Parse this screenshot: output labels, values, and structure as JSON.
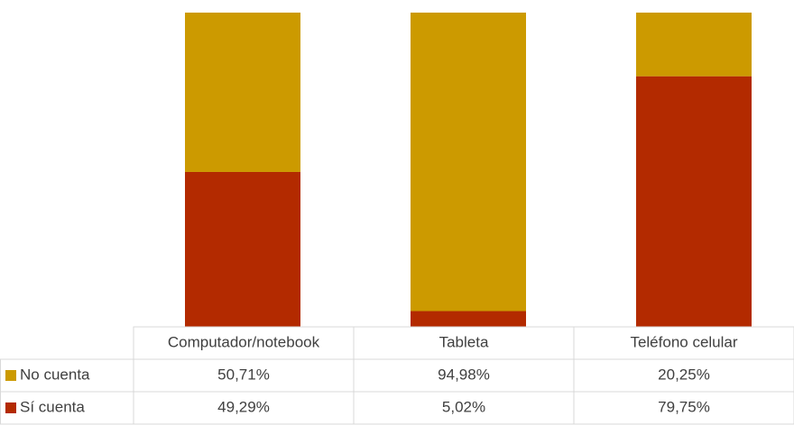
{
  "chart_data": {
    "type": "bar",
    "stacked": true,
    "categories": [
      "Computador/notebook",
      "Tableta",
      "Teléfono celular"
    ],
    "series": [
      {
        "name": "No cuenta",
        "color": "#cc9a00",
        "values": [
          50.71,
          94.98,
          20.25
        ],
        "value_labels": [
          "50,71%",
          "94,98%",
          "20,25%"
        ]
      },
      {
        "name": "Sí cuenta",
        "color": "#b32a00",
        "values": [
          49.29,
          5.02,
          79.75
        ],
        "value_labels": [
          "49,29%",
          "5,02%",
          "79,75%"
        ]
      }
    ]
  }
}
